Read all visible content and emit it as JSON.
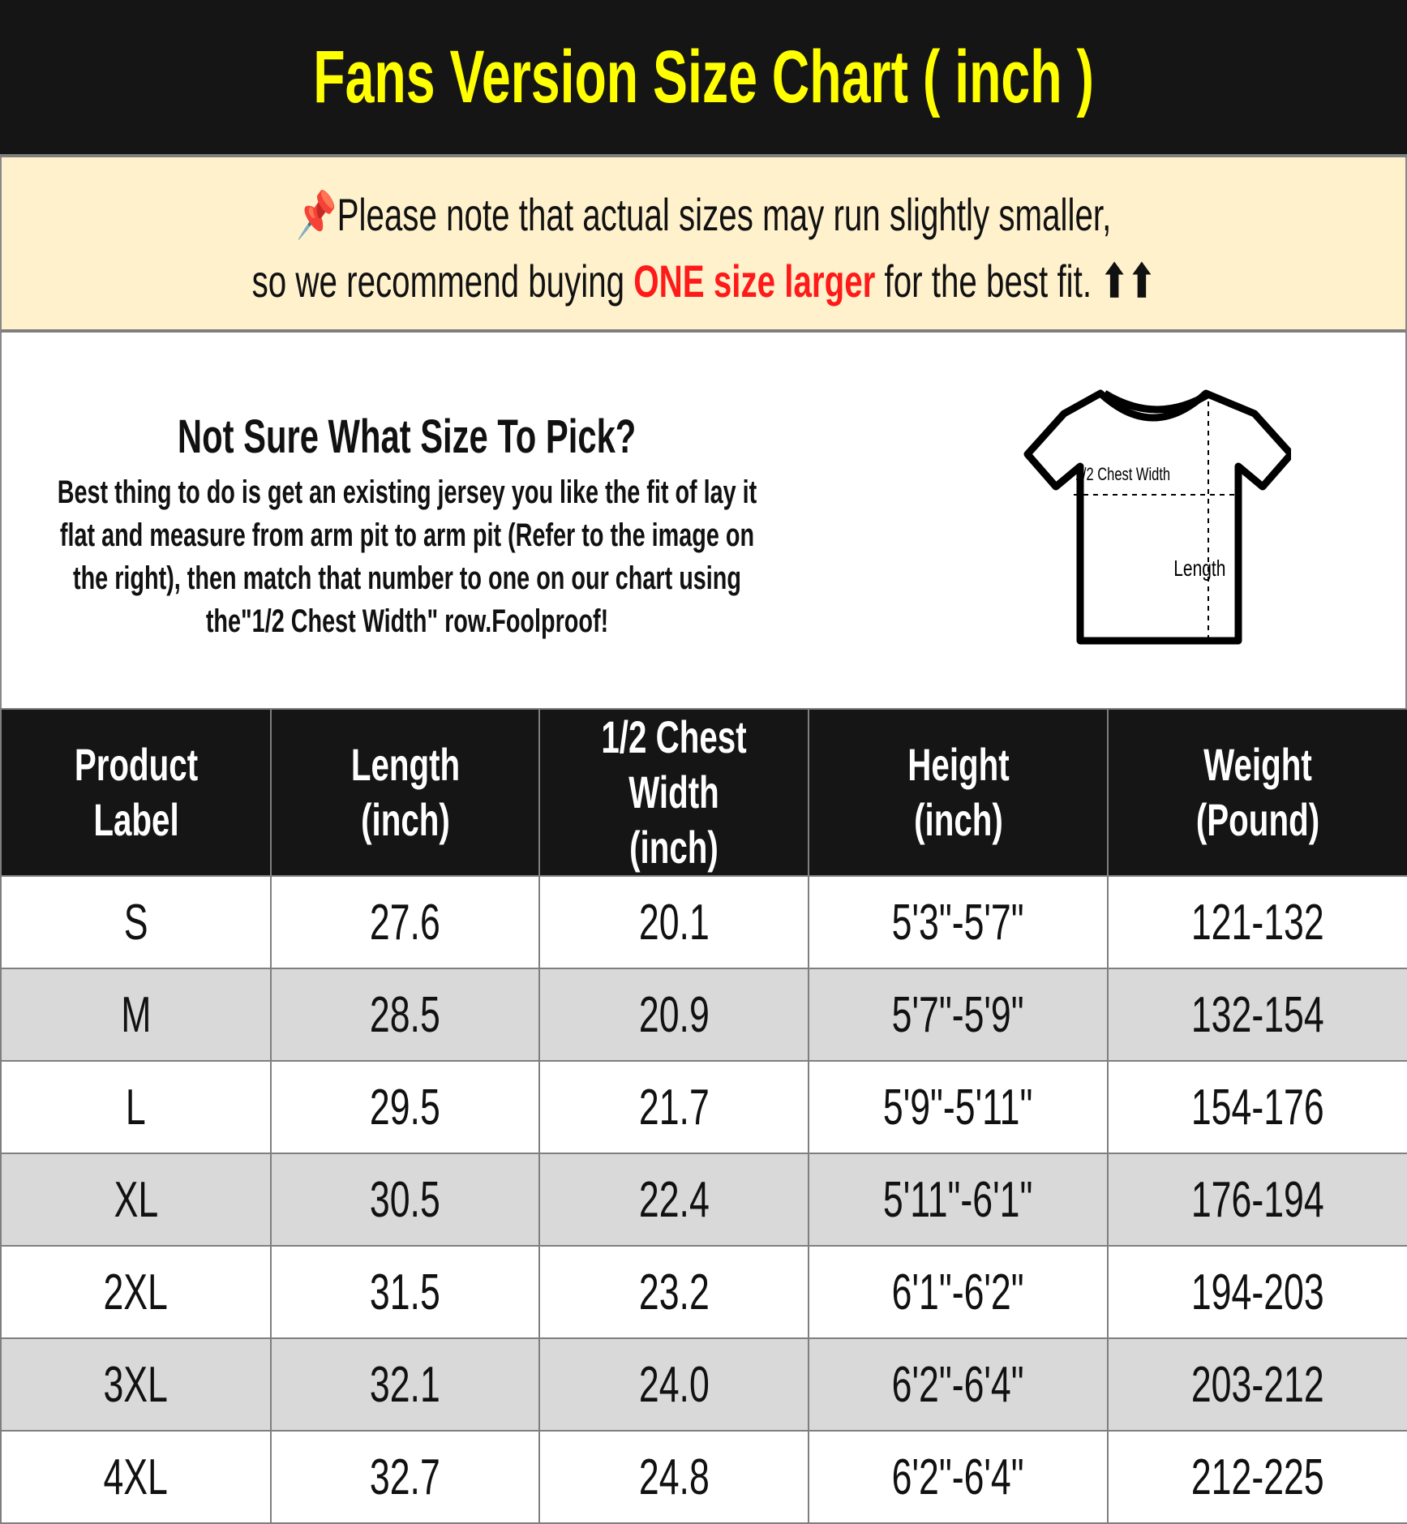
{
  "title": "Fans Version Size Chart ( inch )",
  "notice": {
    "pin_icon": "pushpin-icon",
    "line1": "Please note that actual sizes may run slightly smaller,",
    "line2_before": "so we recommend buying ",
    "line2_highlight": "ONE size larger",
    "line2_after": " for the best fit. ",
    "arrows": "⬆⬆",
    "highlight_color": "#ff1a1a"
  },
  "info": {
    "heading": "Not Sure What Size To Pick?",
    "body": "Best thing to do is get an existing jersey you like the fit of lay it flat and measure from arm pit to arm pit (Refer to the image on the right), then match that number to one on our chart using the\"1/2 Chest Width\" row.Foolproof!",
    "diagram": {
      "chest_label": "1/2 Chest Width",
      "length_label": "Length"
    }
  },
  "table": {
    "headers": [
      "Product Label",
      "Length (inch)",
      "1/2 Chest Width (inch)",
      "Height (inch)",
      "Weight (Pound)"
    ],
    "rows": [
      [
        "S",
        "27.6",
        "20.1",
        "5'3\"-5'7\"",
        "121-132"
      ],
      [
        "M",
        "28.5",
        "20.9",
        "5'7\"-5'9\"",
        "132-154"
      ],
      [
        "L",
        "29.5",
        "21.7",
        "5'9\"-5'11\"",
        "154-176"
      ],
      [
        "XL",
        "30.5",
        "22.4",
        "5'11\"-6'1\"",
        "176-194"
      ],
      [
        "2XL",
        "31.5",
        "23.2",
        "6'1\"-6'2\"",
        "194-203"
      ],
      [
        "3XL",
        "32.1",
        "24.0",
        "6'2\"-6'4\"",
        "203-212"
      ],
      [
        "4XL",
        "32.7",
        "24.8",
        "6'2\"-6'4\"",
        "212-225"
      ]
    ]
  }
}
